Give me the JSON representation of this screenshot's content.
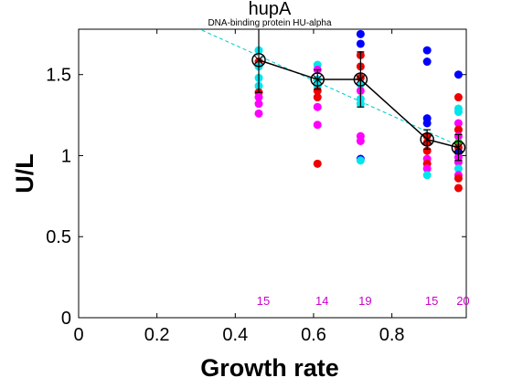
{
  "chart_data": {
    "type": "scatter",
    "title": "hupA",
    "subtitle": "DNA-binding protein HU-alpha",
    "xlabel": "Growth rate",
    "ylabel": "U/L",
    "xlim": [
      0,
      0.99
    ],
    "ylim": [
      0,
      1.78
    ],
    "xticks": [
      0,
      0.2,
      0.4,
      0.6,
      0.8
    ],
    "xtick_labels": [
      "0",
      "0.2",
      "0.4",
      "0.6",
      "0.8"
    ],
    "yticks": [
      0,
      0.5,
      1,
      1.5
    ],
    "ytick_labels": [
      "0",
      "0.5",
      "1",
      "1.5"
    ],
    "grid": false,
    "colors": {
      "blue": "#0000ff",
      "cyan": "#00e5ee",
      "red": "#ee0000",
      "magenta": "#ff00ff",
      "green": "#00cc00",
      "mean_line": "#000000",
      "fit_line": "#00cccc",
      "count_label": "#cc00cc"
    },
    "trend_line": {
      "style": "dashed",
      "x": [
        0.3,
        0.99
      ],
      "y": [
        1.79,
        1.04
      ]
    },
    "mean_series": {
      "x": [
        0.46,
        0.61,
        0.72,
        0.89,
        0.97
      ],
      "y": [
        1.59,
        1.47,
        1.47,
        1.1,
        1.05
      ],
      "err": [
        0.2,
        0.06,
        0.17,
        0.06,
        0.08
      ]
    },
    "counts": [
      {
        "x": 0.46,
        "label": "15"
      },
      {
        "x": 0.61,
        "label": "14"
      },
      {
        "x": 0.72,
        "label": "19"
      },
      {
        "x": 0.89,
        "label": "15"
      },
      {
        "x": 0.97,
        "label": "20"
      }
    ],
    "points": [
      {
        "x": 0.46,
        "y": 1.65,
        "c": "cyan"
      },
      {
        "x": 0.46,
        "y": 1.58,
        "c": "red"
      },
      {
        "x": 0.46,
        "y": 1.55,
        "c": "cyan"
      },
      {
        "x": 0.46,
        "y": 1.48,
        "c": "cyan"
      },
      {
        "x": 0.46,
        "y": 1.43,
        "c": "cyan"
      },
      {
        "x": 0.46,
        "y": 1.39,
        "c": "red"
      },
      {
        "x": 0.46,
        "y": 1.36,
        "c": "magenta"
      },
      {
        "x": 0.46,
        "y": 1.32,
        "c": "magenta"
      },
      {
        "x": 0.46,
        "y": 1.26,
        "c": "magenta"
      },
      {
        "x": 0.61,
        "y": 1.56,
        "c": "cyan"
      },
      {
        "x": 0.61,
        "y": 1.53,
        "c": "magenta"
      },
      {
        "x": 0.61,
        "y": 1.47,
        "c": "cyan"
      },
      {
        "x": 0.61,
        "y": 1.43,
        "c": "cyan"
      },
      {
        "x": 0.61,
        "y": 1.4,
        "c": "red"
      },
      {
        "x": 0.61,
        "y": 1.36,
        "c": "red"
      },
      {
        "x": 0.61,
        "y": 1.3,
        "c": "magenta"
      },
      {
        "x": 0.61,
        "y": 1.19,
        "c": "magenta"
      },
      {
        "x": 0.61,
        "y": 0.95,
        "c": "red"
      },
      {
        "x": 0.72,
        "y": 1.75,
        "c": "blue"
      },
      {
        "x": 0.72,
        "y": 1.69,
        "c": "blue"
      },
      {
        "x": 0.72,
        "y": 1.62,
        "c": "red"
      },
      {
        "x": 0.72,
        "y": 1.55,
        "c": "red"
      },
      {
        "x": 0.72,
        "y": 1.48,
        "c": "red"
      },
      {
        "x": 0.72,
        "y": 1.44,
        "c": "cyan"
      },
      {
        "x": 0.72,
        "y": 1.4,
        "c": "magenta"
      },
      {
        "x": 0.72,
        "y": 1.35,
        "c": "cyan"
      },
      {
        "x": 0.72,
        "y": 1.32,
        "c": "cyan"
      },
      {
        "x": 0.72,
        "y": 1.12,
        "c": "magenta"
      },
      {
        "x": 0.72,
        "y": 1.09,
        "c": "magenta"
      },
      {
        "x": 0.72,
        "y": 0.98,
        "c": "blue"
      },
      {
        "x": 0.72,
        "y": 0.97,
        "c": "cyan"
      },
      {
        "x": 0.89,
        "y": 1.65,
        "c": "blue"
      },
      {
        "x": 0.89,
        "y": 1.58,
        "c": "blue"
      },
      {
        "x": 0.89,
        "y": 1.23,
        "c": "blue"
      },
      {
        "x": 0.89,
        "y": 1.2,
        "c": "blue"
      },
      {
        "x": 0.89,
        "y": 1.12,
        "c": "red"
      },
      {
        "x": 0.89,
        "y": 1.08,
        "c": "red"
      },
      {
        "x": 0.89,
        "y": 1.03,
        "c": "red"
      },
      {
        "x": 0.89,
        "y": 0.98,
        "c": "magenta"
      },
      {
        "x": 0.89,
        "y": 0.95,
        "c": "red"
      },
      {
        "x": 0.89,
        "y": 0.92,
        "c": "magenta"
      },
      {
        "x": 0.89,
        "y": 0.88,
        "c": "cyan"
      },
      {
        "x": 0.97,
        "y": 1.5,
        "c": "blue"
      },
      {
        "x": 0.97,
        "y": 1.36,
        "c": "red"
      },
      {
        "x": 0.97,
        "y": 1.29,
        "c": "cyan"
      },
      {
        "x": 0.97,
        "y": 1.27,
        "c": "cyan"
      },
      {
        "x": 0.97,
        "y": 1.2,
        "c": "magenta"
      },
      {
        "x": 0.97,
        "y": 1.16,
        "c": "red"
      },
      {
        "x": 0.97,
        "y": 1.12,
        "c": "magenta"
      },
      {
        "x": 0.97,
        "y": 1.08,
        "c": "green"
      },
      {
        "x": 0.97,
        "y": 1.05,
        "c": "red"
      },
      {
        "x": 0.97,
        "y": 1.02,
        "c": "blue"
      },
      {
        "x": 0.97,
        "y": 0.99,
        "c": "magenta"
      },
      {
        "x": 0.97,
        "y": 0.96,
        "c": "magenta"
      },
      {
        "x": 0.97,
        "y": 0.92,
        "c": "cyan"
      },
      {
        "x": 0.97,
        "y": 0.88,
        "c": "magenta"
      },
      {
        "x": 0.97,
        "y": 0.86,
        "c": "red"
      },
      {
        "x": 0.97,
        "y": 0.8,
        "c": "red"
      }
    ]
  }
}
